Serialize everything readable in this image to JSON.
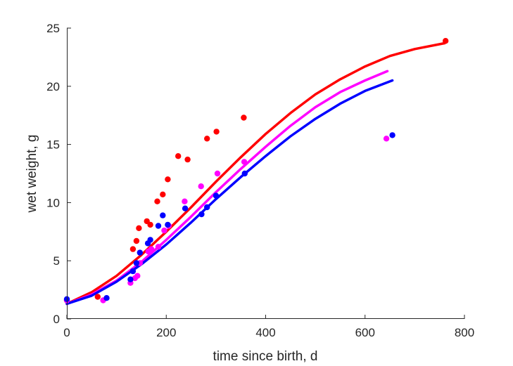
{
  "chart_data": {
    "type": "scatter",
    "xlabel": "time since birth, d",
    "ylabel": "wet weight, g",
    "xlim": [
      0,
      800
    ],
    "ylim": [
      0,
      25
    ],
    "xticks": [
      0,
      200,
      400,
      600,
      800
    ],
    "yticks": [
      0,
      5,
      10,
      15,
      20,
      25
    ],
    "grid": false,
    "series": [
      {
        "color": "#ff0000",
        "points": [
          [
            0,
            1.6
          ],
          [
            62,
            1.9
          ],
          [
            133,
            6.0
          ],
          [
            140,
            6.7
          ],
          [
            145,
            7.8
          ],
          [
            161,
            8.4
          ],
          [
            168,
            8.1
          ],
          [
            182,
            10.1
          ],
          [
            193,
            10.7
          ],
          [
            203,
            12.0
          ],
          [
            224,
            14.0
          ],
          [
            243,
            13.7
          ],
          [
            282,
            15.5
          ],
          [
            301,
            16.1
          ],
          [
            356,
            17.3
          ],
          [
            762,
            23.9
          ]
        ],
        "curve": [
          [
            0,
            1.3
          ],
          [
            50,
            2.3
          ],
          [
            100,
            3.7
          ],
          [
            150,
            5.5
          ],
          [
            200,
            7.5
          ],
          [
            250,
            9.6
          ],
          [
            300,
            11.8
          ],
          [
            350,
            13.9
          ],
          [
            400,
            15.9
          ],
          [
            450,
            17.7
          ],
          [
            500,
            19.3
          ],
          [
            550,
            20.6
          ],
          [
            600,
            21.7
          ],
          [
            650,
            22.6
          ],
          [
            700,
            23.2
          ],
          [
            760,
            23.7
          ]
        ]
      },
      {
        "color": "#ff00ff",
        "points": [
          [
            0,
            1.6
          ],
          [
            73,
            1.6
          ],
          [
            128,
            3.1
          ],
          [
            137,
            3.5
          ],
          [
            142,
            3.7
          ],
          [
            147,
            4.8
          ],
          [
            164,
            5.8
          ],
          [
            170,
            6.0
          ],
          [
            184,
            6.2
          ],
          [
            196,
            7.6
          ],
          [
            205,
            8.0
          ],
          [
            237,
            10.1
          ],
          [
            270,
            11.4
          ],
          [
            303,
            12.5
          ],
          [
            357,
            13.5
          ],
          [
            643,
            15.5
          ]
        ],
        "curve": [
          [
            0,
            1.3
          ],
          [
            50,
            2.1
          ],
          [
            100,
            3.3
          ],
          [
            150,
            4.9
          ],
          [
            200,
            6.8
          ],
          [
            250,
            8.8
          ],
          [
            300,
            10.9
          ],
          [
            350,
            12.9
          ],
          [
            400,
            14.8
          ],
          [
            450,
            16.6
          ],
          [
            500,
            18.2
          ],
          [
            550,
            19.5
          ],
          [
            600,
            20.5
          ],
          [
            645,
            21.3
          ]
        ]
      },
      {
        "color": "#0000ff",
        "points": [
          [
            0,
            1.7
          ],
          [
            80,
            1.8
          ],
          [
            128,
            3.4
          ],
          [
            133,
            4.1
          ],
          [
            140,
            4.8
          ],
          [
            147,
            5.7
          ],
          [
            163,
            6.5
          ],
          [
            168,
            6.8
          ],
          [
            184,
            8.0
          ],
          [
            193,
            8.9
          ],
          [
            203,
            8.1
          ],
          [
            238,
            9.5
          ],
          [
            271,
            9.0
          ],
          [
            282,
            9.6
          ],
          [
            300,
            10.6
          ],
          [
            358,
            12.5
          ],
          [
            655,
            15.8
          ]
        ],
        "curve": [
          [
            0,
            1.3
          ],
          [
            50,
            2.0
          ],
          [
            100,
            3.2
          ],
          [
            150,
            4.7
          ],
          [
            200,
            6.4
          ],
          [
            250,
            8.3
          ],
          [
            300,
            10.3
          ],
          [
            350,
            12.2
          ],
          [
            400,
            14.0
          ],
          [
            450,
            15.7
          ],
          [
            500,
            17.2
          ],
          [
            550,
            18.5
          ],
          [
            600,
            19.6
          ],
          [
            655,
            20.5
          ]
        ]
      }
    ]
  }
}
